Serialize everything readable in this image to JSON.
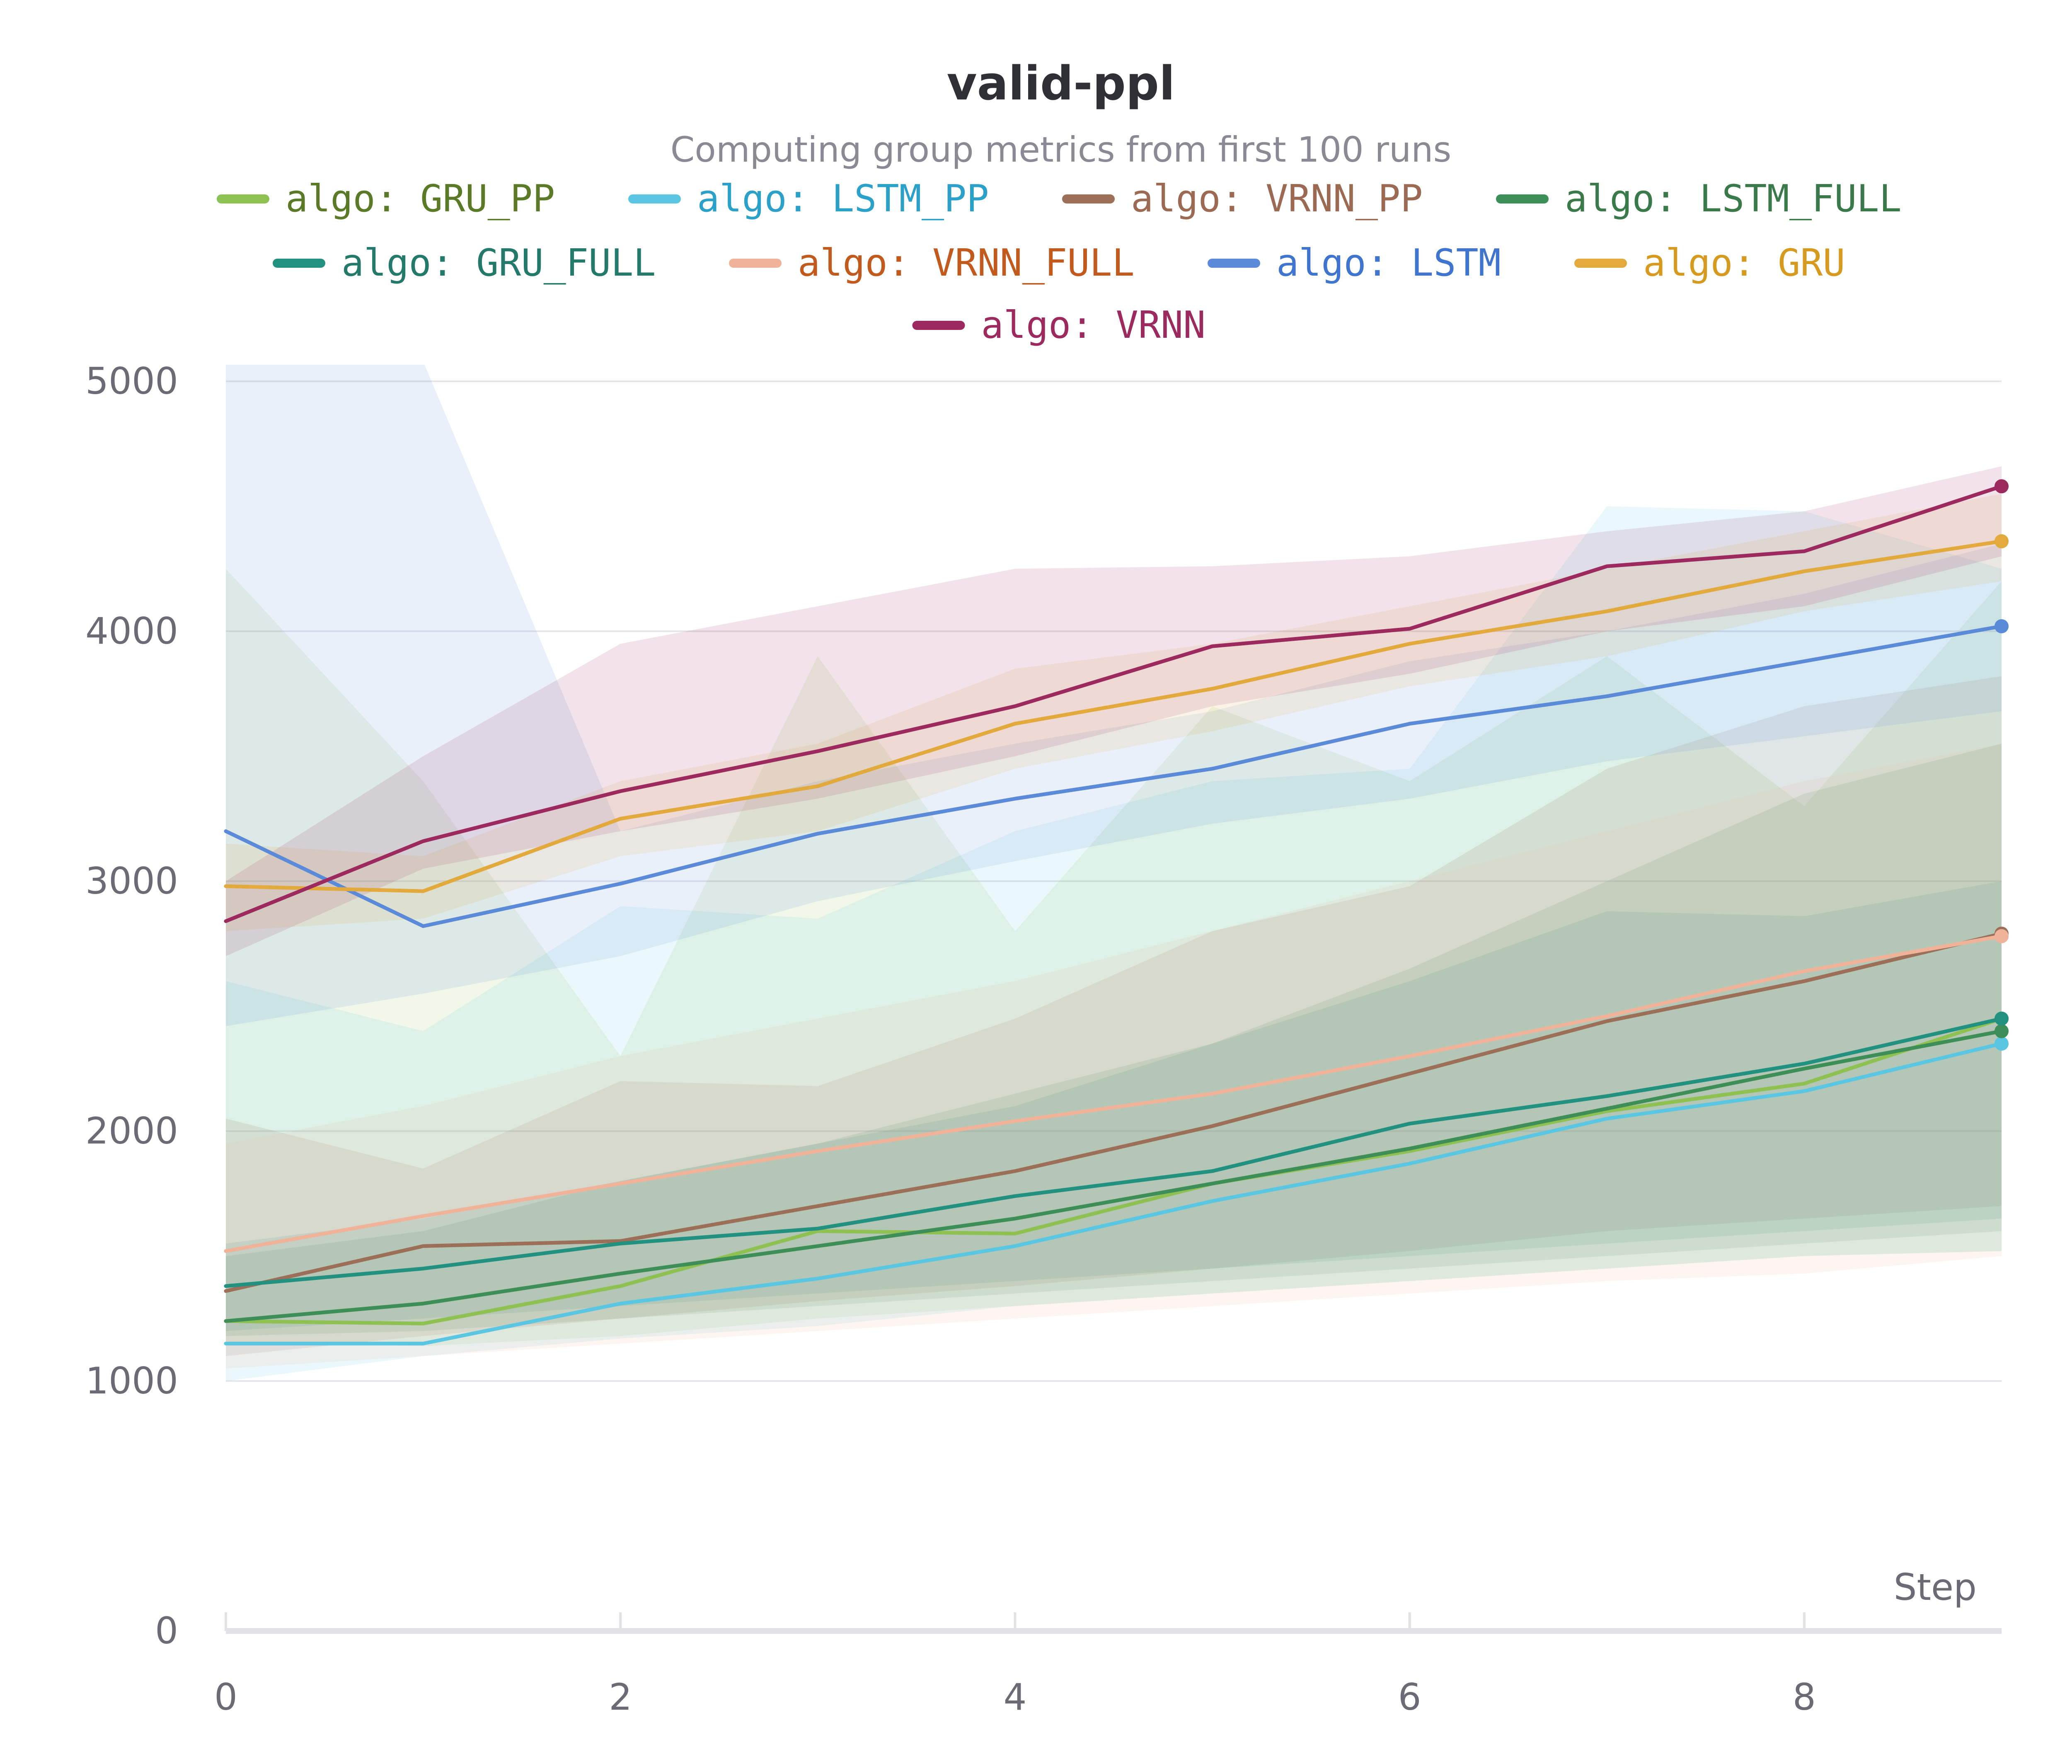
{
  "chart_data": {
    "type": "line",
    "title": "valid-ppl",
    "subtitle": "Computing group metrics from first 100 runs",
    "xlabel": "Step",
    "ylabel": "",
    "xlim": [
      0,
      9
    ],
    "ylim": [
      0,
      5000
    ],
    "x_ticks": [
      "0",
      "2",
      "4",
      "6",
      "8"
    ],
    "x_tick_values": [
      0,
      2,
      4,
      6,
      8
    ],
    "y_ticks": [
      "0",
      "1000",
      "2000",
      "3000",
      "4000",
      "5000"
    ],
    "y_tick_values": [
      0,
      1000,
      2000,
      3000,
      4000,
      5000
    ],
    "grid": true,
    "legend_position": "top-center",
    "x": [
      0,
      1,
      2,
      3,
      4,
      5,
      6,
      7,
      8,
      9
    ],
    "series": [
      {
        "name": "algo: GRU_PP",
        "color": "#8fc052",
        "text_color": "#5a7a28",
        "values": [
          1240,
          1230,
          1380,
          1600,
          1590,
          1790,
          1920,
          2080,
          2190,
          2450
        ],
        "band_low": [
          1150,
          1140,
          1180,
          1250,
          1300,
          1350,
          1400,
          1450,
          1500,
          1520
        ],
        "band_high": [
          4250,
          3400,
          2300,
          3900,
          2800,
          3700,
          3400,
          3900,
          3300,
          4200
        ]
      },
      {
        "name": "algo: LSTM_PP",
        "color": "#5bc6e2",
        "text_color": "#2ba0c8",
        "values": [
          1150,
          1150,
          1310,
          1410,
          1540,
          1720,
          1870,
          2050,
          2160,
          2350
        ],
        "band_low": [
          1000,
          1100,
          1170,
          1220,
          1300,
          1350,
          1400,
          1450,
          1500,
          1520
        ],
        "band_high": [
          2600,
          2400,
          2900,
          2850,
          3200,
          3400,
          3450,
          4500,
          4480,
          4250
        ]
      },
      {
        "name": "algo: VRNN_PP",
        "color": "#9c6f58",
        "text_color": "#9c6a52",
        "values": [
          1360,
          1540,
          1560,
          1700,
          1840,
          2020,
          2230,
          2440,
          2600,
          2790
        ],
        "band_low": [
          1100,
          1180,
          1250,
          1320,
          1380,
          1450,
          1520,
          1600,
          1650,
          1700
        ],
        "band_high": [
          2050,
          1850,
          2200,
          2180,
          2450,
          2800,
          2980,
          3450,
          3700,
          3820
        ]
      },
      {
        "name": "algo: LSTM_FULL",
        "color": "#3e8e57",
        "text_color": "#3a7a4a",
        "values": [
          1240,
          1310,
          1430,
          1540,
          1650,
          1790,
          1930,
          2090,
          2250,
          2400
        ],
        "band_low": [
          1180,
          1200,
          1250,
          1300,
          1350,
          1400,
          1450,
          1500,
          1550,
          1600
        ],
        "band_high": [
          1500,
          1600,
          1800,
          1950,
          2150,
          2350,
          2650,
          3000,
          3350,
          3550
        ]
      },
      {
        "name": "algo: GRU_FULL",
        "color": "#239180",
        "text_color": "#237a6a",
        "values": [
          1380,
          1450,
          1550,
          1610,
          1740,
          1840,
          2030,
          2140,
          2270,
          2450
        ],
        "band_low": [
          1200,
          1250,
          1300,
          1350,
          1400,
          1450,
          1500,
          1550,
          1600,
          1650
        ],
        "band_high": [
          1550,
          1650,
          1800,
          1950,
          2100,
          2350,
          2600,
          2880,
          2860,
          3000
        ]
      },
      {
        "name": "algo: VRNN_FULL",
        "color": "#f0b39a",
        "text_color": "#c25a1e",
        "values": [
          1520,
          1660,
          1790,
          1920,
          2040,
          2150,
          2300,
          2460,
          2640,
          2780
        ],
        "band_low": [
          1050,
          1100,
          1150,
          1200,
          1250,
          1300,
          1350,
          1400,
          1430,
          1500
        ],
        "band_high": [
          1950,
          2100,
          2300,
          2450,
          2600,
          2800,
          3000,
          3200,
          3400,
          3550
        ]
      },
      {
        "name": "algo: LSTM",
        "color": "#5a8ad8",
        "text_color": "#3f74cf",
        "values": [
          3200,
          2820,
          2990,
          3190,
          3330,
          3450,
          3630,
          3740,
          3880,
          4020
        ],
        "band_low": [
          2420,
          2550,
          2700,
          2920,
          3080,
          3230,
          3330,
          3480,
          3580,
          3680
        ],
        "band_high": [
          5080,
          5080,
          3200,
          3400,
          3550,
          3680,
          3880,
          4000,
          4150,
          4350
        ]
      },
      {
        "name": "algo: GRU",
        "color": "#e2aa3c",
        "text_color": "#d69a1e",
        "values": [
          2980,
          2960,
          3250,
          3380,
          3630,
          3770,
          3950,
          4080,
          4240,
          4360
        ],
        "band_low": [
          2800,
          2850,
          3100,
          3200,
          3450,
          3600,
          3780,
          3900,
          4080,
          4200
        ],
        "band_high": [
          3150,
          3100,
          3400,
          3550,
          3850,
          3950,
          4100,
          4250,
          4400,
          4550
        ]
      },
      {
        "name": "algo: VRNN",
        "color": "#9c2a5e",
        "text_color": "#9c2a5e",
        "values": [
          2840,
          3160,
          3360,
          3520,
          3700,
          3940,
          4010,
          4260,
          4320,
          4580
        ],
        "band_low": [
          2700,
          3050,
          3200,
          3330,
          3500,
          3700,
          3830,
          4000,
          4100,
          4300
        ],
        "band_high": [
          3000,
          3500,
          3950,
          4100,
          4250,
          4260,
          4300,
          4400,
          4480,
          4660
        ]
      }
    ]
  }
}
